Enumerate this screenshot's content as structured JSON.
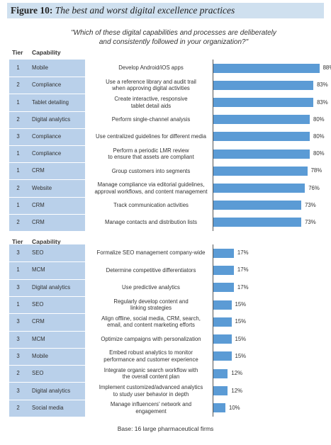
{
  "figure": {
    "label": "Figure 10:",
    "title": "The best and worst digital excellence practices",
    "question": "\"Which of these digital capabilities and processes are deliberately and consistently followed in your organization?\"",
    "headers": {
      "tier": "Tier",
      "capability": "Capability"
    },
    "base": "Base: 16 large pharmaceutical firms"
  },
  "chart_data": [
    {
      "type": "bar",
      "orientation": "horizontal",
      "unit": "%",
      "xlim": [
        0,
        100
      ],
      "rows": [
        {
          "tier": "1",
          "capability": "Mobile",
          "practice": [
            "Develop Android/iOS apps"
          ],
          "value": 88
        },
        {
          "tier": "2",
          "capability": "Compliance",
          "practice": [
            "Use a reference library and audit trail",
            "when approving digital activities"
          ],
          "value": 83
        },
        {
          "tier": "1",
          "capability": "Tablet detailing",
          "practice": [
            "Create interactive, responsive",
            "tablet detail aids"
          ],
          "value": 83
        },
        {
          "tier": "2",
          "capability": "Digital analytics",
          "practice": [
            "Perform single-channel analysis"
          ],
          "value": 80
        },
        {
          "tier": "3",
          "capability": "Compliance",
          "practice": [
            "Use centralized guidelines for different media"
          ],
          "value": 80
        },
        {
          "tier": "1",
          "capability": "Compliance",
          "practice": [
            "Perform a periodic LMR review",
            "to ensure that assets are compliant"
          ],
          "value": 80
        },
        {
          "tier": "1",
          "capability": "CRM",
          "practice": [
            "Group customers into segments"
          ],
          "value": 78
        },
        {
          "tier": "2",
          "capability": "Website",
          "practice": [
            "Manage compliance via editorial guidelines,",
            "approval workflows, and content management"
          ],
          "value": 76
        },
        {
          "tier": "1",
          "capability": "CRM",
          "practice": [
            "Track communication activities"
          ],
          "value": 73
        },
        {
          "tier": "2",
          "capability": "CRM",
          "practice": [
            "Manage contacts and distribution lists"
          ],
          "value": 73
        }
      ]
    },
    {
      "type": "bar",
      "orientation": "horizontal",
      "unit": "%",
      "xlim": [
        0,
        100
      ],
      "rows": [
        {
          "tier": "3",
          "capability": "SEO",
          "practice": [
            "Formalize SEO management company-wide"
          ],
          "value": 17
        },
        {
          "tier": "1",
          "capability": "MCM",
          "practice": [
            "Determine competitive differentiators"
          ],
          "value": 17
        },
        {
          "tier": "3",
          "capability": "Digital analytics",
          "practice": [
            "Use predictive analytics"
          ],
          "value": 17
        },
        {
          "tier": "1",
          "capability": "SEO",
          "practice": [
            "Regularly develop content and",
            "linking strategies"
          ],
          "value": 15
        },
        {
          "tier": "3",
          "capability": "CRM",
          "practice": [
            "Align offline, social media, CRM, search,",
            "email, and content marketing efforts"
          ],
          "value": 15
        },
        {
          "tier": "3",
          "capability": "MCM",
          "practice": [
            "Optimize campaigns with personalization"
          ],
          "value": 15
        },
        {
          "tier": "3",
          "capability": "Mobile",
          "practice": [
            "Embed robust analytics to monitor",
            "performance and customer experience"
          ],
          "value": 15
        },
        {
          "tier": "2",
          "capability": "SEO",
          "practice": [
            "Integrate organic search workflow with",
            "the overall content plan"
          ],
          "value": 12
        },
        {
          "tier": "3",
          "capability": "Digital analytics",
          "practice": [
            "Implement customized/advanced analytics",
            "to study user behavior in depth"
          ],
          "value": 12
        },
        {
          "tier": "2",
          "capability": "Social media",
          "practice": [
            "Manage influencers' network and",
            "engagement"
          ],
          "value": 10
        }
      ]
    }
  ]
}
